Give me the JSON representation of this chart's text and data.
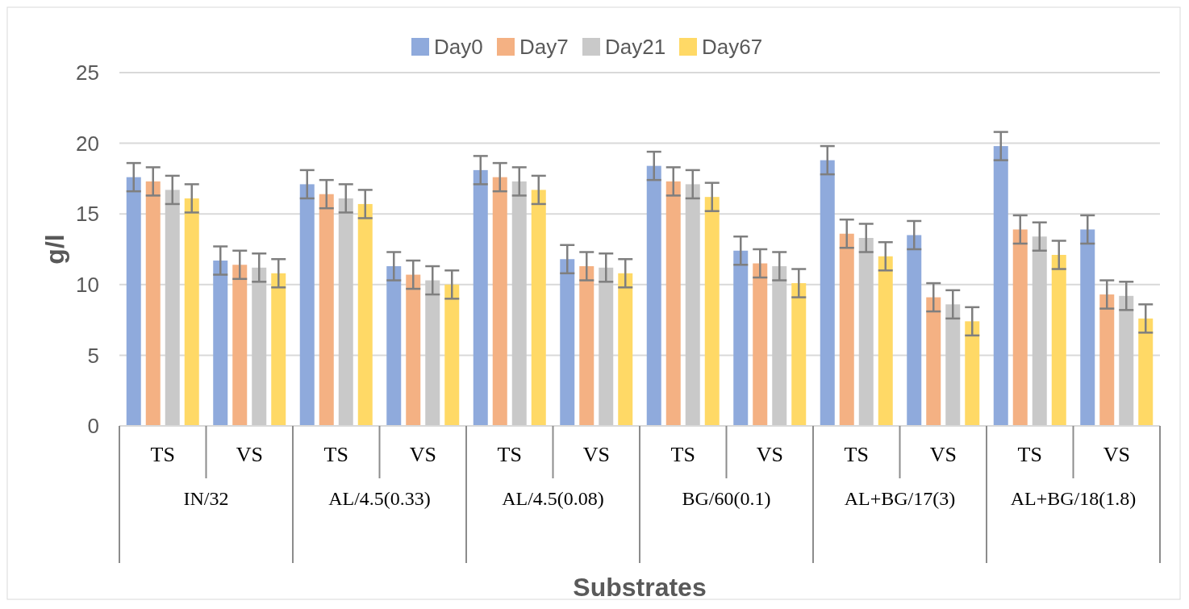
{
  "chart_data": {
    "type": "bar",
    "xlabel": "Substrates",
    "ylabel": "g/l",
    "categories": [
      "TS",
      "VS",
      "TS",
      "VS",
      "TS",
      "VS",
      "TS",
      "VS",
      "TS",
      "VS",
      "TS",
      "VS"
    ],
    "annotations": [
      "IN/32",
      "AL/4.5(0.33)",
      "AL/4.5(0.08)",
      "BG/60(0.1)",
      "AL+BG/17(3)",
      "AL+BG/18(1.8)"
    ],
    "series": [
      {
        "name": "Day0",
        "color": "#8faadc",
        "values": [
          17.6,
          11.7,
          17.1,
          11.3,
          18.1,
          11.8,
          18.4,
          12.4,
          18.8,
          13.5,
          19.8,
          13.9
        ],
        "errors": [
          1,
          1,
          1,
          1,
          1,
          1,
          1,
          1,
          1,
          1,
          1,
          1
        ]
      },
      {
        "name": "Day7",
        "color": "#f4b183",
        "values": [
          17.3,
          11.4,
          16.4,
          10.7,
          17.6,
          11.3,
          17.3,
          11.5,
          13.6,
          9.1,
          13.9,
          9.3
        ],
        "errors": [
          1,
          1,
          1,
          1,
          1,
          1,
          1,
          1,
          1,
          1,
          1,
          1
        ]
      },
      {
        "name": "Day21",
        "color": "#c9c9c9",
        "values": [
          16.7,
          11.2,
          16.1,
          10.3,
          17.3,
          11.2,
          17.1,
          11.3,
          13.3,
          8.6,
          13.4,
          9.2
        ],
        "errors": [
          1,
          1,
          1,
          1,
          1,
          1,
          1,
          1,
          1,
          1,
          1,
          1
        ]
      },
      {
        "name": "Day67",
        "color": "#ffd966",
        "values": [
          16.1,
          10.8,
          15.7,
          10.0,
          16.7,
          10.8,
          16.2,
          10.1,
          12.0,
          7.4,
          12.1,
          7.6
        ],
        "errors": [
          1,
          1,
          1,
          1,
          1,
          1,
          1,
          1,
          1,
          1,
          1,
          1
        ]
      }
    ],
    "ylim": [
      0,
      25
    ],
    "yticks": [
      0,
      5,
      10,
      15,
      20,
      25
    ],
    "grid": "y",
    "legend": "top"
  }
}
